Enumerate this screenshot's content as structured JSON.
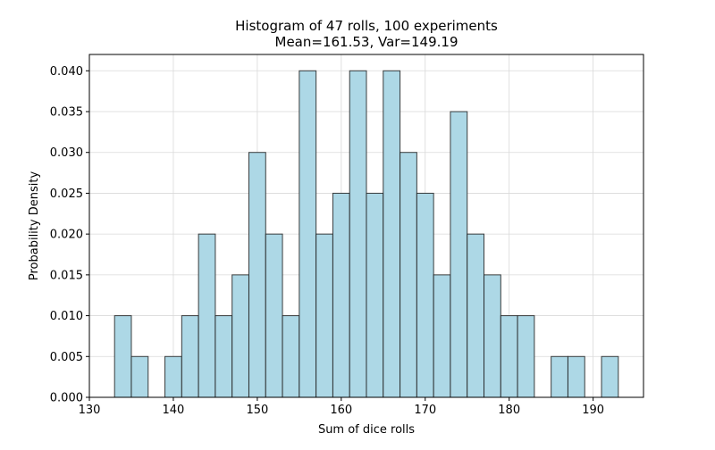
{
  "chart_data": {
    "type": "bar",
    "title": "Histogram of 47 rolls, 100 experiments",
    "subtitle": "Mean=161.53, Var=149.19",
    "xlabel": "Sum of dice rolls",
    "ylabel": "Probability Density",
    "xlim": [
      130,
      196
    ],
    "ylim": [
      0,
      0.042
    ],
    "grid": true,
    "bar_color": "#ADD8E6",
    "edge_color": "#1f1f1f",
    "grid_color": "#d9d9d9",
    "x_ticks": [
      "130",
      "140",
      "150",
      "160",
      "170",
      "180",
      "190"
    ],
    "y_ticks": [
      "0.000",
      "0.005",
      "0.010",
      "0.015",
      "0.020",
      "0.025",
      "0.030",
      "0.035",
      "0.040"
    ],
    "bins": [
      {
        "x0": 133,
        "x1": 135,
        "density": 0.01
      },
      {
        "x0": 135,
        "x1": 137,
        "density": 0.005
      },
      {
        "x0": 137,
        "x1": 139,
        "density": 0.0
      },
      {
        "x0": 139,
        "x1": 141,
        "density": 0.005
      },
      {
        "x0": 141,
        "x1": 143,
        "density": 0.01
      },
      {
        "x0": 143,
        "x1": 145,
        "density": 0.02
      },
      {
        "x0": 145,
        "x1": 147,
        "density": 0.01
      },
      {
        "x0": 147,
        "x1": 149,
        "density": 0.015
      },
      {
        "x0": 149,
        "x1": 151,
        "density": 0.03
      },
      {
        "x0": 151,
        "x1": 153,
        "density": 0.02
      },
      {
        "x0": 153,
        "x1": 155,
        "density": 0.01
      },
      {
        "x0": 155,
        "x1": 157,
        "density": 0.04
      },
      {
        "x0": 157,
        "x1": 159,
        "density": 0.02
      },
      {
        "x0": 159,
        "x1": 161,
        "density": 0.025
      },
      {
        "x0": 161,
        "x1": 163,
        "density": 0.04
      },
      {
        "x0": 163,
        "x1": 165,
        "density": 0.025
      },
      {
        "x0": 165,
        "x1": 167,
        "density": 0.04
      },
      {
        "x0": 167,
        "x1": 169,
        "density": 0.03
      },
      {
        "x0": 169,
        "x1": 171,
        "density": 0.025
      },
      {
        "x0": 171,
        "x1": 173,
        "density": 0.015
      },
      {
        "x0": 173,
        "x1": 175,
        "density": 0.035
      },
      {
        "x0": 175,
        "x1": 177,
        "density": 0.02
      },
      {
        "x0": 177,
        "x1": 179,
        "density": 0.015
      },
      {
        "x0": 179,
        "x1": 181,
        "density": 0.01
      },
      {
        "x0": 181,
        "x1": 183,
        "density": 0.01
      },
      {
        "x0": 183,
        "x1": 185,
        "density": 0.0
      },
      {
        "x0": 185,
        "x1": 187,
        "density": 0.005
      },
      {
        "x0": 187,
        "x1": 189,
        "density": 0.005
      },
      {
        "x0": 189,
        "x1": 191,
        "density": 0.0
      },
      {
        "x0": 191,
        "x1": 193,
        "density": 0.005
      }
    ]
  }
}
